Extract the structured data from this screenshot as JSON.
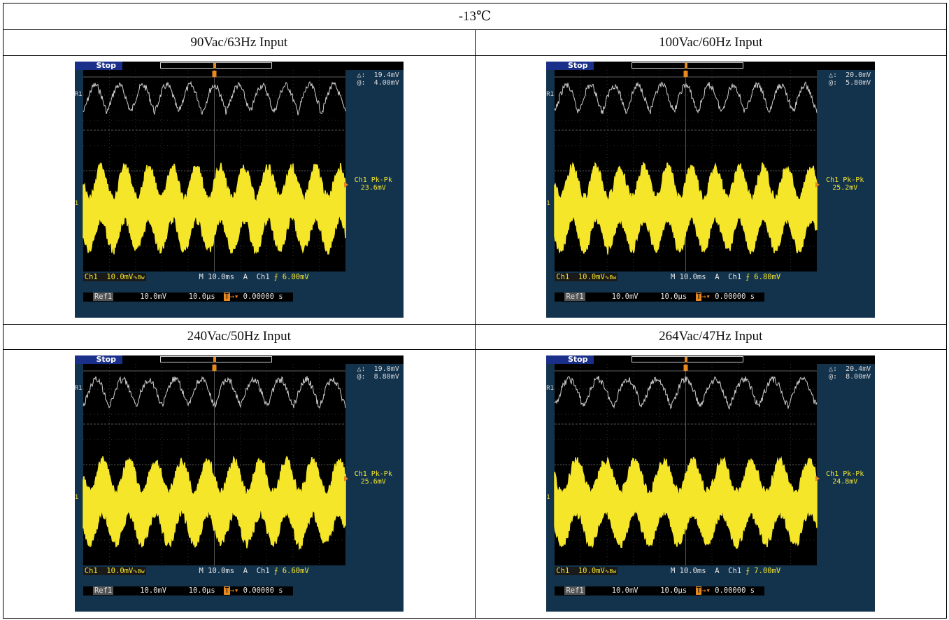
{
  "title": "-13℃",
  "panels": [
    {
      "label": "90Vac/63Hz Input",
      "status": "Stop",
      "delta": "△:  19.4mV",
      "at": "@:  4.00mV",
      "pk_label": "Ch1 Pk-Pk",
      "pk_value": "23.6mV",
      "ch_scale": "10.0mV",
      "ch_glyph": "∿Bw",
      "timebase": "M 10.0ms",
      "trig_src": "A  Ch1",
      "trig_level": "6.00mV",
      "ref_label": "Ref1",
      "ref_scale": "10.0mV",
      "ref_time": "10.0μs",
      "trig_pos": "0.00000 s",
      "marker_ref": "R1",
      "marker_ch": "1"
    },
    {
      "label": "100Vac/60Hz Input",
      "status": "Stop",
      "delta": "△:  20.0mV",
      "at": "@:  5.80mV",
      "pk_label": "Ch1 Pk-Pk",
      "pk_value": "25.2mV",
      "ch_scale": "10.0mV",
      "ch_glyph": "∿Bw",
      "timebase": "M 10.0ms",
      "trig_src": "A  Ch1",
      "trig_level": "6.80mV",
      "ref_label": "Ref1",
      "ref_scale": "10.0mV",
      "ref_time": "10.0μs",
      "trig_pos": "0.00000 s",
      "marker_ref": "R1",
      "marker_ch": "1"
    },
    {
      "label": "240Vac/50Hz Input",
      "status": "Stop",
      "delta": "△:  19.0mV",
      "at": "@:  8.80mV",
      "pk_label": "Ch1 Pk-Pk",
      "pk_value": "25.6mV",
      "ch_scale": "10.0mV",
      "ch_glyph": "∿Bw",
      "timebase": "M 10.0ms",
      "trig_src": "A  Ch1",
      "trig_level": "6.60mV",
      "ref_label": "Ref1",
      "ref_scale": "10.0mV",
      "ref_time": "10.0μs",
      "trig_pos": "0.00000 s",
      "marker_ref": "R1",
      "marker_ch": "1"
    },
    {
      "label": "264Vac/47Hz Input",
      "status": "Stop",
      "delta": "△:  20.4mV",
      "at": "@:  8.00mV",
      "pk_label": "Ch1 Pk-Pk",
      "pk_value": "24.8mV",
      "ch_scale": "10.0mV",
      "ch_glyph": "∿Bw",
      "timebase": "M 10.0ms",
      "trig_src": "A  Ch1",
      "trig_level": "7.00mV",
      "ref_label": "Ref1",
      "ref_scale": "10.0mV",
      "ref_time": "10.0μs",
      "trig_pos": "0.00000 s",
      "marker_ref": "R1",
      "marker_ch": "1"
    }
  ],
  "colors": {
    "screen_bg": "#13334d",
    "plot_bg": "#000000",
    "ch1": "#f5e62a",
    "ref1": "#cfcfcf",
    "accent": "#e8891f"
  }
}
